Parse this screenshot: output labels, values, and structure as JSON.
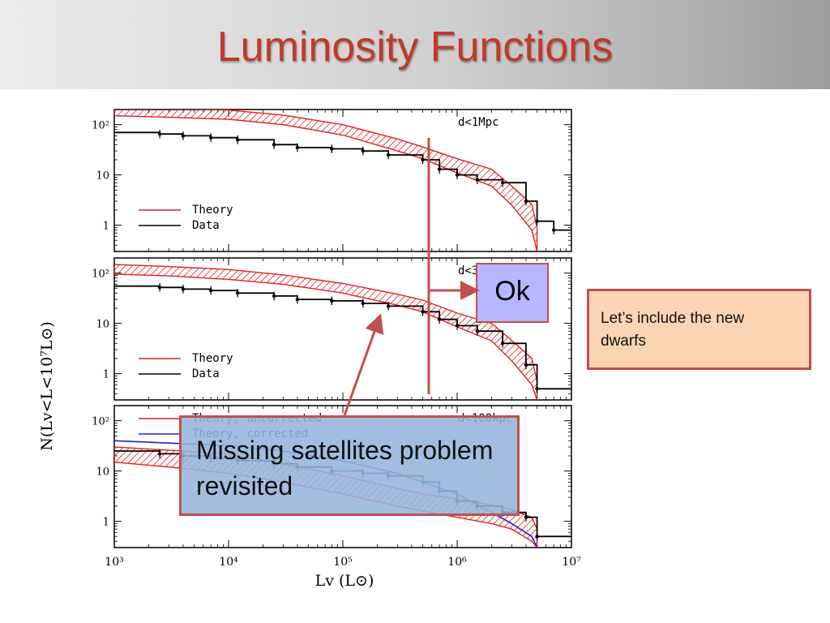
{
  "slide": {
    "title": "Luminosity Functions",
    "callouts": {
      "ok": "Ok",
      "missing_line1": "Missing satellites problem",
      "missing_line2": "revisited",
      "dwarfs_line1": "Let’s include the new",
      "dwarfs_line2": "dwarfs"
    },
    "colors": {
      "title": "#c0392b",
      "theory": "#e02020",
      "data": "#000000",
      "corrected": "#2020d0",
      "callout_border": "#c0504d",
      "ok_fill": "#b8b6ff",
      "missing_fill": "#96b4dc",
      "dwarfs_fill": "#fbd4b4"
    }
  },
  "chart_data": {
    "type": "line",
    "xlabel": "Lv (L⊙)",
    "ylabel": "N(Lv<L<10⁷L⊙)",
    "x_scale": "log",
    "y_scale": "log",
    "xlim": [
      1000,
      10000000
    ],
    "ylim": [
      0.3,
      200
    ],
    "x_ticks": [
      "10³",
      "10⁴",
      "10⁵",
      "10⁶",
      "10⁷"
    ],
    "y_ticks": [
      "10²",
      "10",
      "1"
    ],
    "panels": [
      {
        "label": "d<1Mpc",
        "legend": [
          "Theory",
          "Data"
        ],
        "series": [
          {
            "name": "Theory",
            "style": "hatched-band",
            "x": [
              1000,
              3000,
              10000,
              30000,
              100000,
              300000,
              500000,
              1000000,
              2000000,
              3000000,
              4500000,
              5000000
            ],
            "y": [
              185,
              175,
              160,
              125,
              80,
              40,
              28,
              16,
              9,
              4,
              1.5,
              0.5
            ],
            "lo": [
              150,
              140,
              128,
              100,
              62,
              30,
              21,
              11,
              6,
              2.5,
              0.8,
              0.3
            ],
            "hi": [
              225,
              215,
              195,
              155,
              100,
              52,
              36,
              21,
              13,
              6,
              2.6,
              0.9
            ]
          },
          {
            "name": "Data",
            "style": "step-errorbars",
            "x": [
              1000,
              2500,
              4000,
              7000,
              12000,
              25000,
              40000,
              80000,
              150000,
              250000,
              500000,
              700000,
              1000000,
              1500000,
              2500000,
              4000000,
              5000000,
              7000000
            ],
            "y": [
              70,
              65,
              60,
              55,
              50,
              40,
              35,
              33,
              30,
              25,
              20,
              13,
              10,
              8,
              7,
              3,
              1.2,
              0.8
            ]
          }
        ]
      },
      {
        "label": "d<300kpc",
        "legend": [
          "Theory",
          "Data"
        ],
        "series": [
          {
            "name": "Theory",
            "style": "hatched-band",
            "x": [
              1000,
              3000,
              10000,
              30000,
              100000,
              300000,
              500000,
              1000000,
              2000000,
              3000000,
              4500000,
              5000000
            ],
            "y": [
              120,
              110,
              95,
              75,
              50,
              30,
              22,
              12,
              7,
              3,
              1.2,
              0.4
            ],
            "lo": [
              95,
              88,
              75,
              60,
              40,
              23,
              17,
              8.5,
              4.5,
              1.8,
              0.6,
              0.3
            ],
            "hi": [
              148,
              135,
              118,
              92,
              62,
              38,
              29,
              16,
              10,
              4.6,
              2,
              0.7
            ]
          },
          {
            "name": "Data",
            "style": "step-errorbars",
            "x": [
              1000,
              2500,
              4000,
              7000,
              12000,
              25000,
              40000,
              80000,
              150000,
              250000,
              500000,
              700000,
              1000000,
              1500000,
              2500000,
              4000000,
              5000000
            ],
            "y": [
              55,
              52,
              48,
              45,
              40,
              35,
              30,
              28,
              25,
              22,
              17,
              12,
              9,
              7,
              4,
              1.5,
              0.5
            ]
          }
        ]
      },
      {
        "label": "d<100kpc",
        "legend": [
          "Theory, uncorrected",
          "Theory, corrected"
        ],
        "series": [
          {
            "name": "Theory, uncorrected",
            "style": "hatched-band",
            "x": [
              1000,
              3000,
              10000,
              30000,
              100000,
              300000,
              500000,
              1000000,
              2000000,
              3000000,
              4500000,
              5000000
            ],
            "y": [
              22,
              18,
              15,
              9,
              5,
              3,
              2.4,
              2,
              1.5,
              1.2,
              0.8,
              0.4
            ],
            "lo": [
              15,
              12,
              9,
              6,
              3.5,
              2,
              1.6,
              1.2,
              0.9,
              0.7,
              0.4,
              0.3
            ],
            "hi": [
              30,
              26,
              22,
              14,
              8,
              4.5,
              3.5,
              2.8,
              2.1,
              1.7,
              1.2,
              0.7
            ]
          },
          {
            "name": "Theory, corrected",
            "style": "line",
            "x": [
              1000,
              3000,
              10000,
              30000,
              100000,
              300000,
              500000,
              1000000,
              2000000,
              3000000,
              4500000,
              5000000
            ],
            "y": [
              40,
              36,
              32,
              25,
              16,
              9,
              6,
              3.5,
              1.5,
              0.9,
              0.5,
              0.3
            ]
          },
          {
            "name": "Data",
            "style": "step-errorbars",
            "x": [
              1000,
              2500,
              4000,
              7000,
              12000,
              25000,
              40000,
              80000,
              150000,
              250000,
              500000,
              700000,
              1000000,
              1500000,
              2500000,
              4000000,
              5000000
            ],
            "y": [
              25,
              22,
              20,
              18,
              16,
              14,
              12,
              10,
              9,
              8,
              6,
              4,
              2.5,
              2,
              1.5,
              1.2,
              0.5
            ]
          }
        ]
      }
    ]
  }
}
